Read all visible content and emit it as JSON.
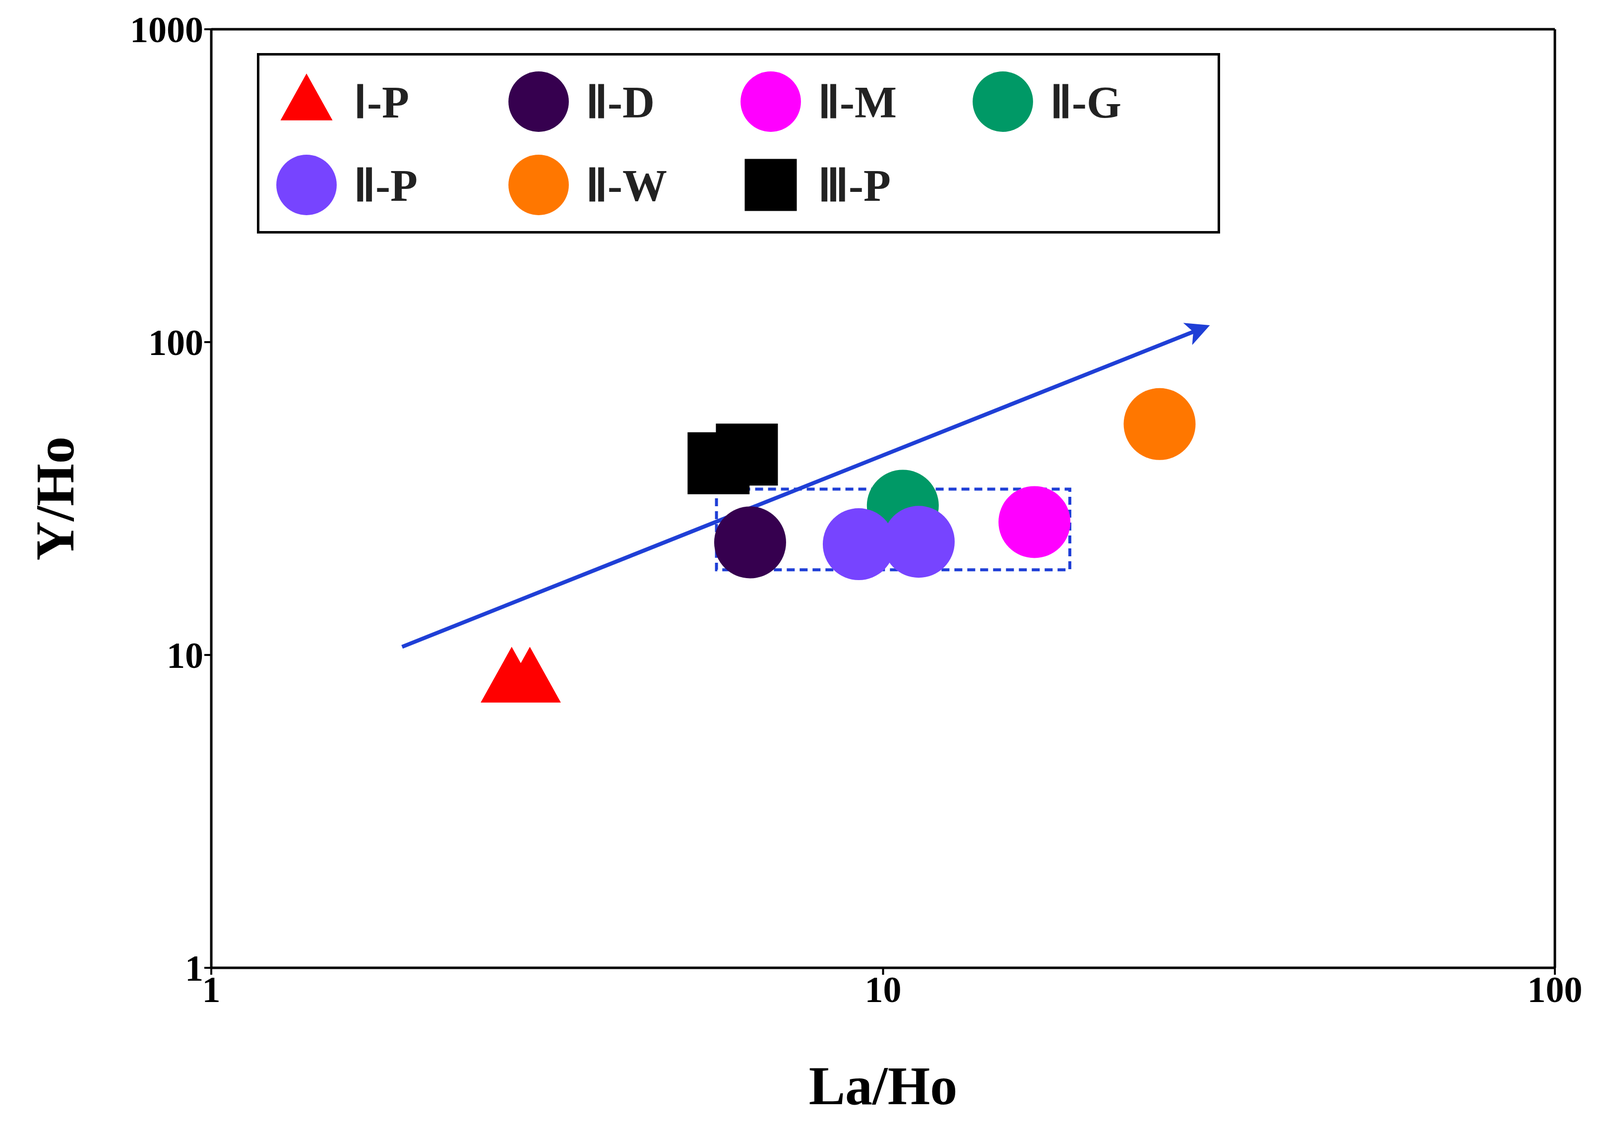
{
  "chart_data": {
    "type": "scatter",
    "x_label": "La/Ho",
    "y_label": "Y/Ho",
    "xlim": [
      1,
      100
    ],
    "ylim": [
      1,
      1000
    ],
    "xticks": [
      1,
      10,
      100
    ],
    "yticks": [
      1,
      10,
      100,
      1000
    ],
    "log": true,
    "grid": false,
    "legend": "upper left",
    "series": [
      {
        "name": "Ⅰ-P",
        "color": "#ff0000",
        "marker": "triangle",
        "x": [
          2.8,
          2.98
        ],
        "y": [
          8.3,
          8.3
        ]
      },
      {
        "name": "Ⅱ-D",
        "color": "#36004f",
        "marker": "circle",
        "x": [
          6.34
        ],
        "y": [
          22.9
        ]
      },
      {
        "name": "Ⅱ-M",
        "color": "#ff00ff",
        "marker": "circle",
        "x": [
          16.8
        ],
        "y": [
          26.6
        ]
      },
      {
        "name": "Ⅱ-G",
        "color": "#009966",
        "marker": "circle",
        "x": [
          10.7
        ],
        "y": [
          30
        ]
      },
      {
        "name": "Ⅱ-P",
        "color": "#7744ff",
        "marker": "circle",
        "x": [
          9.2,
          11.3
        ],
        "y": [
          22.6,
          23
        ]
      },
      {
        "name": "Ⅱ-W",
        "color": "#ff7700",
        "marker": "circle",
        "x": [
          25.8
        ],
        "y": [
          54.7
        ]
      },
      {
        "name": "Ⅲ-P",
        "color": "#000000",
        "marker": "square",
        "x": [
          5.69,
          6.27
        ],
        "y": [
          41,
          43.7
        ]
      }
    ]
  }
}
